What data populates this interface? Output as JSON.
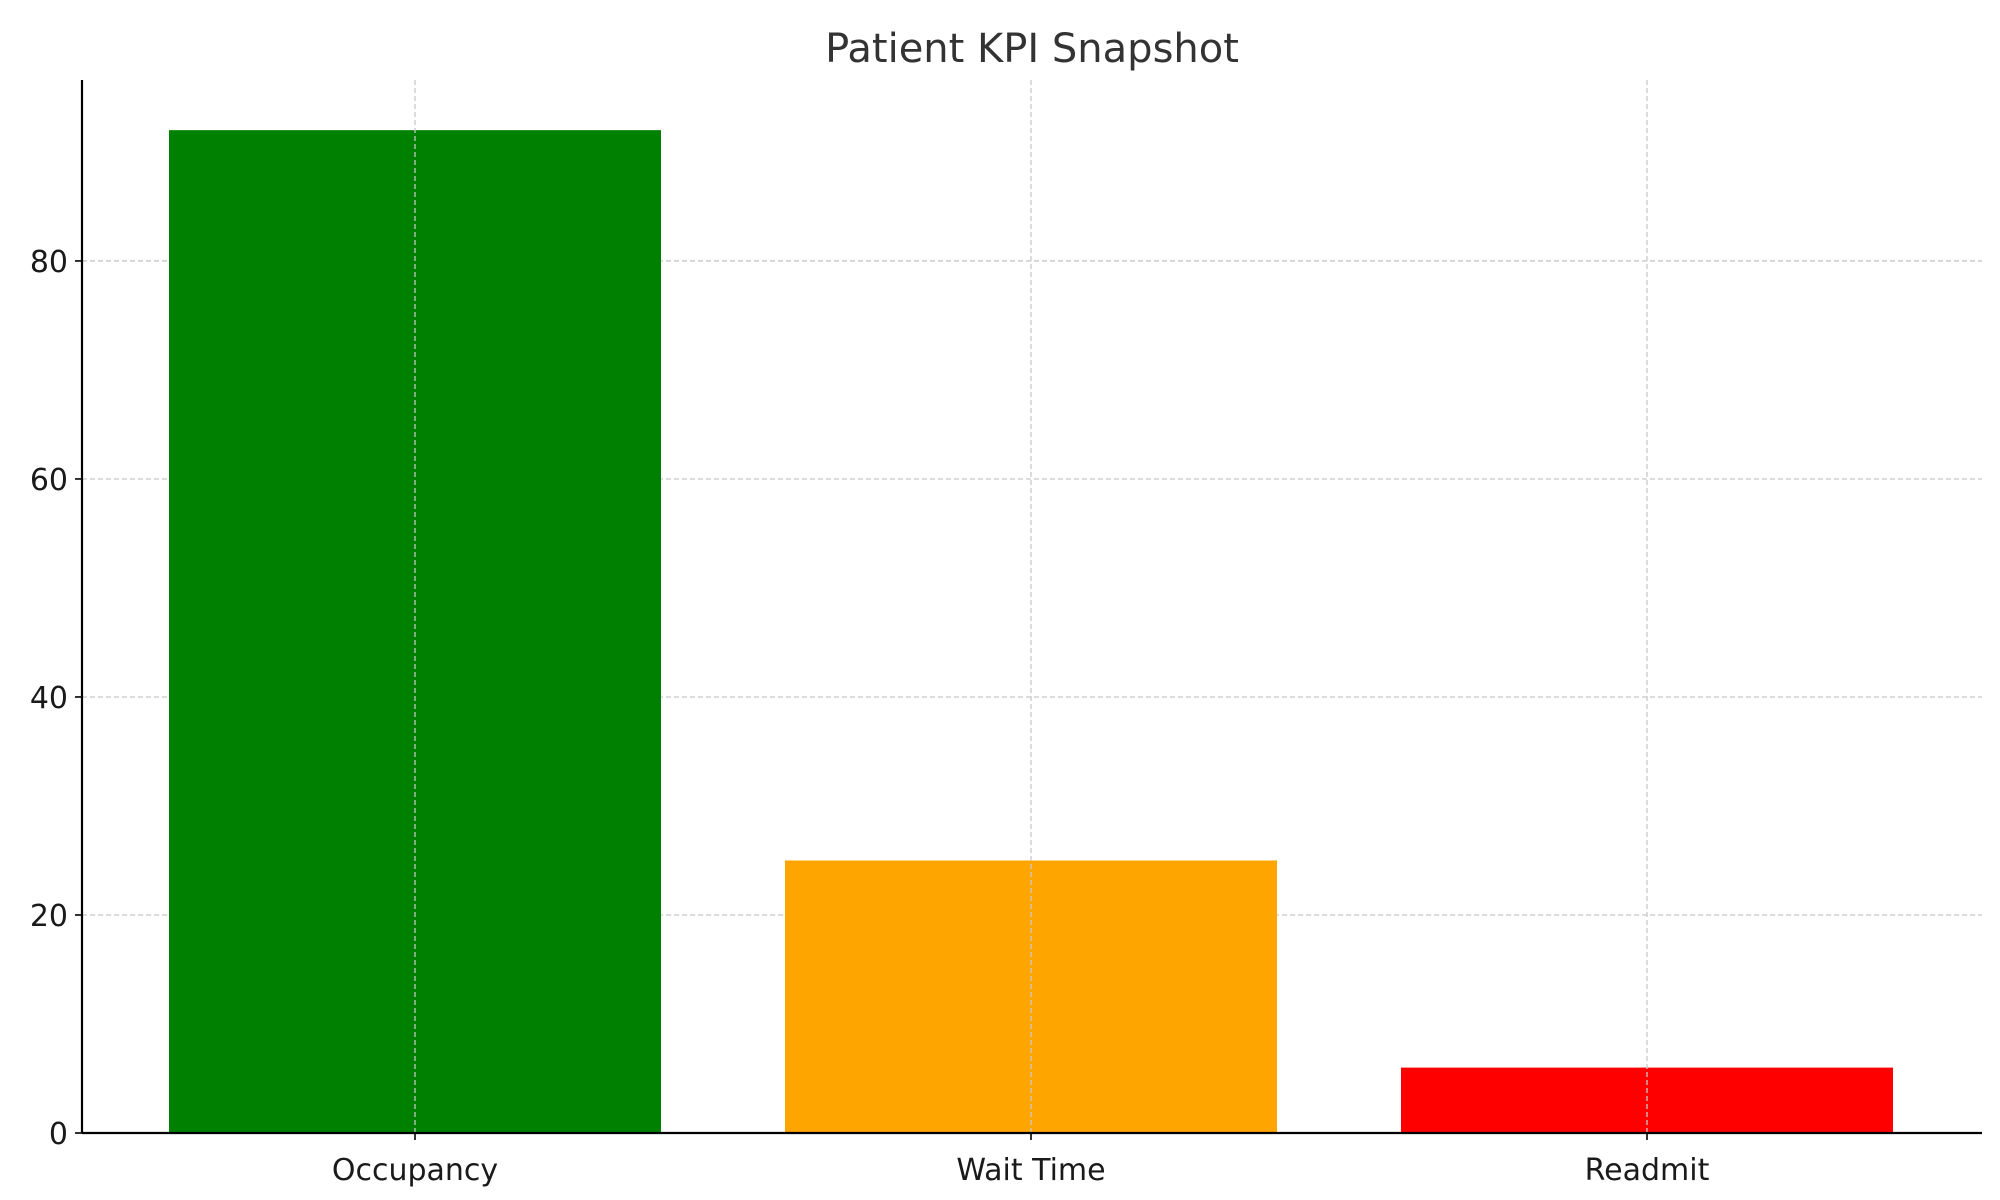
{
  "chart_data": {
    "type": "bar",
    "title": "Patient KPI Snapshot",
    "xlabel": "",
    "ylabel": "",
    "categories": [
      "Occupancy",
      "Wait Time",
      "Readmit"
    ],
    "values": [
      92,
      25,
      6
    ],
    "colors": [
      "#008000",
      "#FFA500",
      "#FF0000"
    ],
    "ylim": [
      0,
      96.6
    ],
    "yticks": [
      0,
      20,
      40,
      60,
      80
    ],
    "grid": true,
    "legend": "none"
  }
}
